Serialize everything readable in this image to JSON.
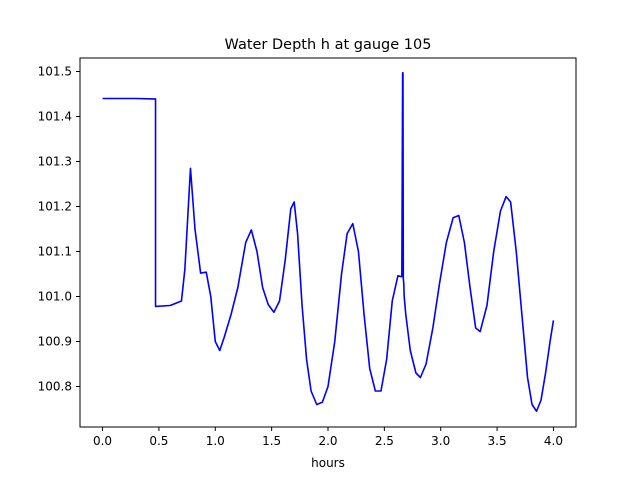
{
  "chart_data": {
    "type": "line",
    "title": "Water Depth h at gauge 105",
    "xlabel": "hours",
    "ylabel": "",
    "xlim": [
      -0.2,
      4.2
    ],
    "ylim": [
      100.71,
      101.53
    ],
    "xticks": [
      0.0,
      0.5,
      1.0,
      1.5,
      2.0,
      2.5,
      3.0,
      3.5,
      4.0
    ],
    "xtick_labels": [
      "0.0",
      "0.5",
      "1.0",
      "1.5",
      "2.0",
      "2.5",
      "3.0",
      "3.5",
      "4.0"
    ],
    "yticks": [
      100.8,
      100.9,
      101.0,
      101.1,
      101.2,
      101.3,
      101.4,
      101.5
    ],
    "ytick_labels": [
      "100.8",
      "100.9",
      "101.0",
      "101.1",
      "101.2",
      "101.3",
      "101.4",
      "101.5"
    ],
    "grid": false,
    "series": [
      {
        "color": "#0000ff",
        "x": [
          0.0,
          0.3,
          0.45,
          0.47,
          0.47,
          0.6,
          0.7,
          0.73,
          0.78,
          0.82,
          0.87,
          0.92,
          0.96,
          1.0,
          1.04,
          1.08,
          1.14,
          1.2,
          1.27,
          1.32,
          1.37,
          1.42,
          1.47,
          1.52,
          1.57,
          1.62,
          1.67,
          1.7,
          1.73,
          1.77,
          1.81,
          1.85,
          1.9,
          1.95,
          2.0,
          2.06,
          2.12,
          2.17,
          2.22,
          2.27,
          2.32,
          2.37,
          2.42,
          2.47,
          2.52,
          2.57,
          2.62,
          2.655,
          2.662,
          2.665,
          2.668,
          2.672,
          2.676,
          2.69,
          2.73,
          2.78,
          2.82,
          2.87,
          2.93,
          2.99,
          3.05,
          3.11,
          3.16,
          3.21,
          3.26,
          3.31,
          3.35,
          3.41,
          3.47,
          3.53,
          3.58,
          3.62,
          3.67,
          3.72,
          3.77,
          3.81,
          3.85,
          3.89,
          3.93,
          3.97,
          4.0
        ],
        "y": [
          101.44,
          101.44,
          101.439,
          101.439,
          100.978,
          100.98,
          100.99,
          101.06,
          101.285,
          101.15,
          101.052,
          101.054,
          101.0,
          100.9,
          100.88,
          100.91,
          100.96,
          101.02,
          101.12,
          101.148,
          101.1,
          101.02,
          100.982,
          100.965,
          100.99,
          101.08,
          101.195,
          101.21,
          101.14,
          100.98,
          100.86,
          100.79,
          100.76,
          100.765,
          100.8,
          100.9,
          101.05,
          101.14,
          101.162,
          101.1,
          100.96,
          100.84,
          100.79,
          100.79,
          100.86,
          100.99,
          101.046,
          101.044,
          101.497,
          101.497,
          101.04,
          101.03,
          101.0,
          100.96,
          100.88,
          100.83,
          100.82,
          100.85,
          100.93,
          101.03,
          101.12,
          101.175,
          101.18,
          101.12,
          101.02,
          100.93,
          100.922,
          100.98,
          101.1,
          101.19,
          101.222,
          101.21,
          101.1,
          100.96,
          100.82,
          100.76,
          100.745,
          100.77,
          100.83,
          100.9,
          100.947
        ]
      }
    ]
  }
}
